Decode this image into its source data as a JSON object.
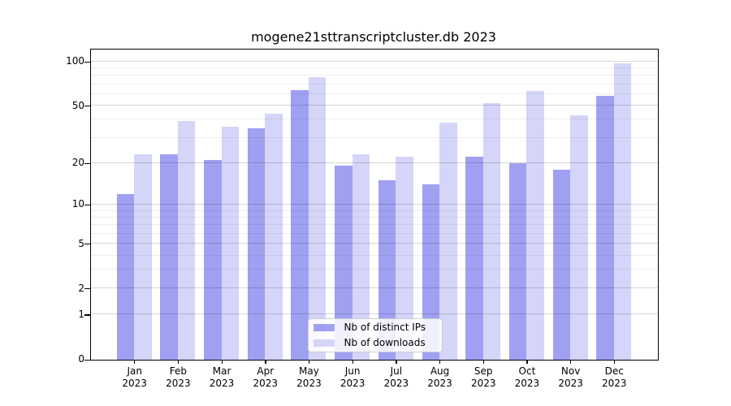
{
  "title": "mogene21sttranscriptcluster.db 2023",
  "chart_data": {
    "type": "bar",
    "categories": [
      "Jan",
      "Feb",
      "Mar",
      "Apr",
      "May",
      "Jun",
      "Jul",
      "Aug",
      "Sep",
      "Oct",
      "Nov",
      "Dec"
    ],
    "x_year_label": "2023",
    "series": [
      {
        "name": "Nb of distinct IPs",
        "color": "#a0a0f2",
        "values": [
          12,
          23,
          21,
          35,
          64,
          19,
          15,
          14,
          22,
          20,
          18,
          58
        ]
      },
      {
        "name": "Nb of downloads",
        "color": "#d5d5f9",
        "values": [
          23,
          39,
          36,
          44,
          78,
          23,
          22,
          38,
          52,
          63,
          43,
          97
        ]
      }
    ],
    "y_scale": "log1p",
    "y_ticks": [
      0,
      1,
      2,
      5,
      10,
      20,
      50,
      100
    ],
    "y_minor_ticks": [
      3,
      4,
      6,
      7,
      8,
      9,
      30,
      40,
      60,
      70,
      80,
      90
    ],
    "ylim": [
      0,
      121
    ],
    "grid": true,
    "legend_position": "lower center",
    "axis_color": "#000000",
    "major_grid_color": "rgba(0,0,0,0.16)",
    "minor_grid_color": "rgba(0,0,0,0.07)"
  }
}
